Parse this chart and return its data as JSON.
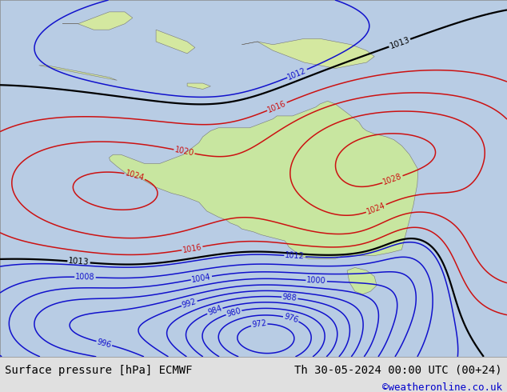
{
  "title_left": "Surface pressure [hPa] ECMWF",
  "title_right": "Th 30-05-2024 00:00 UTC (00+24)",
  "copyright": "©weatheronline.co.uk",
  "land_color": "#c8e6a0",
  "ocean_color": "#b8cce4",
  "footer_bg": "#e0e0e0",
  "footer_text_color": "#000000",
  "copyright_color": "#0000cc",
  "font_size_footer": 10,
  "lon_min": 100,
  "lon_max": 165,
  "lat_min": -55,
  "lat_max": 5
}
